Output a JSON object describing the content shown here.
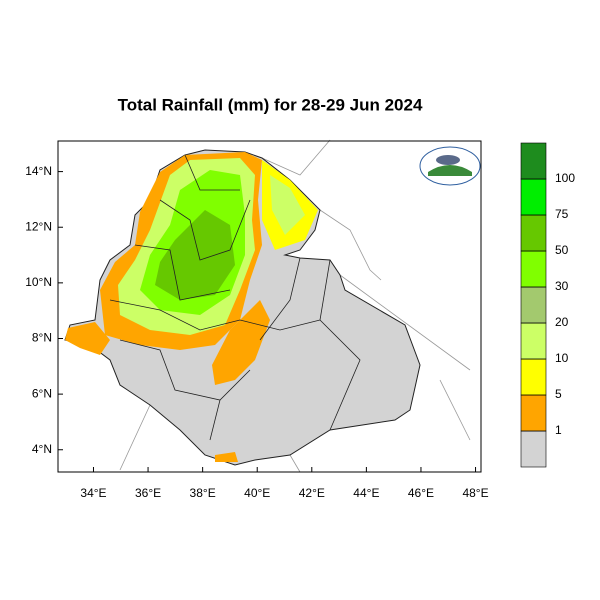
{
  "chart_data": {
    "type": "map",
    "title": "Total Rainfall (mm) for 28-29 Jun 2024",
    "xlim": [
      32.7,
      48.2
    ],
    "ylim": [
      3.2,
      15.1
    ],
    "xticks": [
      {
        "value": 34,
        "label": "34°E"
      },
      {
        "value": 36,
        "label": "36°E"
      },
      {
        "value": 38,
        "label": "38°E"
      },
      {
        "value": 40,
        "label": "40°E"
      },
      {
        "value": 42,
        "label": "42°E"
      },
      {
        "value": 44,
        "label": "44°E"
      },
      {
        "value": 46,
        "label": "46°E"
      },
      {
        "value": 48,
        "label": "48°E"
      }
    ],
    "yticks": [
      {
        "value": 4,
        "label": "4°N"
      },
      {
        "value": 6,
        "label": "6°N"
      },
      {
        "value": 8,
        "label": "8°N"
      },
      {
        "value": 10,
        "label": "10°N"
      },
      {
        "value": 12,
        "label": "12°N"
      },
      {
        "value": 14,
        "label": "14°N"
      }
    ],
    "legend": {
      "levels": [
        1,
        5,
        10,
        20,
        30,
        50,
        75,
        100
      ],
      "colors": [
        "#d3d3d3",
        "#ffa500",
        "#ffff00",
        "#ccff66",
        "#a3c96e",
        "#80ff00",
        "#66c800",
        "#00ee00",
        "#1e8c1e"
      ]
    }
  }
}
